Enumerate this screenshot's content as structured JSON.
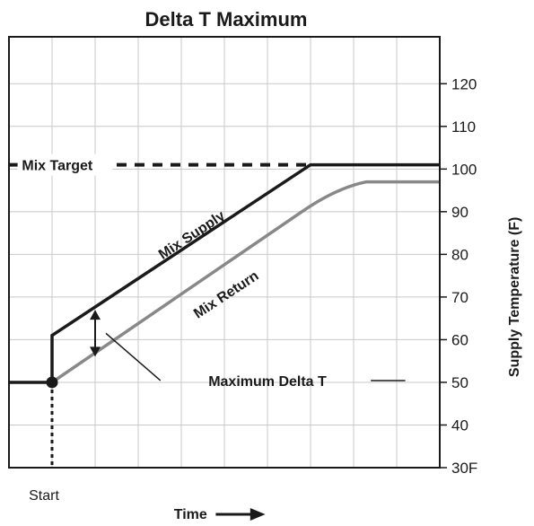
{
  "chart_data": {
    "type": "line",
    "title": "Delta T Maximum",
    "xlabel": "Time",
    "ylabel": "Supply Temperature (F)",
    "y_tick_labels": [
      "30F",
      "40",
      "50",
      "60",
      "70",
      "80",
      "90",
      "100",
      "110",
      "120"
    ],
    "y_ticks": [
      30,
      40,
      50,
      60,
      70,
      80,
      90,
      100,
      110,
      120
    ],
    "ylim": [
      30,
      131
    ],
    "xlim": [
      -1,
      9
    ],
    "x_start_label": "Start",
    "x_start": 0,
    "grid": true,
    "series": [
      {
        "name": "Mix Supply",
        "color": "#1a1a1a",
        "x": [
          -1,
          0,
          0,
          6,
          9
        ],
        "y": [
          50,
          50,
          61,
          101,
          101
        ]
      },
      {
        "name": "Mix Return",
        "color": "#888888",
        "x": [
          0,
          5.8,
          6.3,
          6.8,
          7.3,
          9
        ],
        "y": [
          50,
          90,
          93.5,
          96,
          97,
          97
        ]
      },
      {
        "name": "Mix Target",
        "color": "#1a1a1a",
        "dashed": true,
        "x": [
          -1,
          6
        ],
        "y": [
          101,
          101
        ]
      }
    ],
    "annotations": [
      {
        "text": "Maximum Delta T",
        "x": 1,
        "y_top": 67,
        "y_bottom": 56
      }
    ]
  }
}
